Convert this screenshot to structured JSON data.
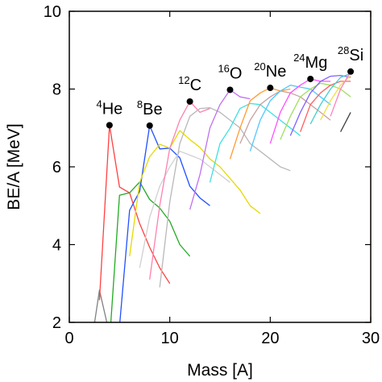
{
  "chart_data": {
    "type": "line",
    "title": "",
    "xlabel": "Mass [A]",
    "ylabel": "BE/A [MeV]",
    "xlim": [
      0,
      30
    ],
    "ylim": [
      2,
      10
    ],
    "xticks": [
      "0",
      "10",
      "20",
      "30"
    ],
    "xtick_values": [
      0,
      10,
      20,
      30
    ],
    "yticks": [
      "2",
      "4",
      "6",
      "8",
      "10"
    ],
    "ytick_values": [
      2,
      4,
      6,
      8,
      10
    ],
    "grid": false,
    "legend": "none",
    "highlighted_points": [
      {
        "mass": "4",
        "symbol": "He",
        "x": 4,
        "y": 7.07
      },
      {
        "mass": "8",
        "symbol": "Be",
        "x": 8,
        "y": 7.06
      },
      {
        "mass": "12",
        "symbol": "C",
        "x": 12,
        "y": 7.68
      },
      {
        "mass": "16",
        "symbol": "O",
        "x": 16,
        "y": 7.98
      },
      {
        "mass": "20",
        "symbol": "Ne",
        "x": 20,
        "y": 8.03
      },
      {
        "mass": "24",
        "symbol": "Mg",
        "x": 24,
        "y": 8.26
      },
      {
        "mass": "28",
        "symbol": "Si",
        "x": 28,
        "y": 8.45
      }
    ],
    "series": [
      {
        "color": "#808080",
        "x": [
          2,
          3,
          4
        ],
        "y": [
          1.1,
          2.83,
          1.7
        ]
      },
      {
        "color": "#ff4040",
        "x": [
          3,
          4,
          5,
          6,
          7,
          8,
          9,
          10
        ],
        "y": [
          2.57,
          7.07,
          5.48,
          5.33,
          4.54,
          3.93,
          3.4,
          3.0
        ]
      },
      {
        "color": "#22aa22",
        "x": [
          4,
          5,
          6,
          7,
          8,
          9,
          10,
          11,
          12
        ],
        "y": [
          1.5,
          5.27,
          5.33,
          5.61,
          5.16,
          4.94,
          4.6,
          4.0,
          3.7
        ]
      },
      {
        "color": "#2050ff",
        "x": [
          5,
          6,
          7,
          8,
          9,
          10,
          11,
          12,
          13,
          14
        ],
        "y": [
          1.9,
          4.88,
          5.37,
          7.06,
          6.46,
          6.48,
          6.23,
          5.5,
          5.2,
          5.0
        ]
      },
      {
        "color": "#e6d800",
        "x": [
          6,
          7,
          8,
          9,
          10,
          11,
          12,
          13,
          14,
          15,
          16,
          17,
          18,
          19
        ],
        "y": [
          3.7,
          5.6,
          6.26,
          6.58,
          6.48,
          6.93,
          6.7,
          6.5,
          6.2,
          6.0,
          5.7,
          5.4,
          5.0,
          4.8
        ]
      },
      {
        "color": "#d0d0d0",
        "x": [
          7,
          8,
          9,
          10,
          11,
          12,
          13,
          14,
          15,
          16
        ],
        "y": [
          3.4,
          4.7,
          5.5,
          6.0,
          6.4,
          6.3,
          6.2,
          6.0,
          5.8,
          5.6
        ]
      },
      {
        "color": "#ff80b0",
        "x": [
          8,
          9,
          10,
          11,
          12,
          13,
          14
        ],
        "y": [
          3.1,
          5.0,
          6.48,
          7.2,
          7.68,
          7.4,
          7.5
        ]
      },
      {
        "color": "#b8b8b8",
        "x": [
          9,
          10,
          11,
          12,
          13,
          14,
          15,
          16,
          17,
          18,
          19,
          20,
          21,
          22
        ],
        "y": [
          2.9,
          5.1,
          6.6,
          7.3,
          7.5,
          7.52,
          7.4,
          7.2,
          7.0,
          6.6,
          6.4,
          6.2,
          6.0,
          5.9
        ]
      },
      {
        "color": "#c070f0",
        "x": [
          12,
          13,
          14,
          15,
          16,
          17,
          18
        ],
        "y": [
          4.9,
          5.8,
          7.0,
          7.6,
          7.98,
          7.8,
          7.75
        ]
      },
      {
        "color": "#40e0e0",
        "x": [
          14,
          15,
          16,
          17,
          18,
          19,
          20,
          21,
          22,
          23
        ],
        "y": [
          5.6,
          6.6,
          7.0,
          7.5,
          7.63,
          7.6,
          7.4,
          7.2,
          7.0,
          6.8
        ]
      },
      {
        "color": "#ff9a30",
        "x": [
          16,
          17,
          18,
          19,
          20,
          21,
          22
        ],
        "y": [
          6.2,
          7.0,
          7.7,
          7.9,
          8.03,
          7.95,
          8.0
        ]
      },
      {
        "color": "#c8a0a0",
        "x": [
          17,
          18,
          19,
          20,
          21,
          22,
          23,
          24,
          25,
          26
        ],
        "y": [
          6.6,
          7.2,
          7.6,
          7.8,
          7.95,
          7.9,
          7.8,
          7.6,
          7.4,
          7.2
        ]
      },
      {
        "color": "#50c8ff",
        "x": [
          18,
          19,
          20,
          21,
          22,
          23,
          24,
          25,
          26
        ],
        "y": [
          6.4,
          7.2,
          7.7,
          7.95,
          8.1,
          8.05,
          8.0,
          7.8,
          7.6
        ]
      },
      {
        "color": "#ff50ff",
        "x": [
          20,
          21,
          22,
          23,
          24,
          25,
          26
        ],
        "y": [
          6.6,
          7.4,
          7.9,
          8.1,
          8.26,
          8.2,
          8.2
        ]
      },
      {
        "color": "#a0e060",
        "x": [
          21,
          22,
          23,
          24,
          25,
          26,
          27,
          28
        ],
        "y": [
          6.7,
          7.3,
          7.8,
          8.0,
          8.15,
          8.1,
          8.0,
          7.8
        ]
      },
      {
        "color": "#8060ff",
        "x": [
          22,
          23,
          24,
          25,
          26,
          27,
          28
        ],
        "y": [
          6.8,
          7.4,
          7.9,
          8.2,
          8.33,
          8.35,
          8.3
        ]
      },
      {
        "color": "#ff6060",
        "x": [
          23,
          24,
          25,
          26,
          27,
          28
        ],
        "y": [
          6.9,
          7.6,
          7.9,
          8.1,
          8.2,
          8.2
        ]
      },
      {
        "color": "#40d0d0",
        "x": [
          24,
          25,
          26,
          27,
          28
        ],
        "y": [
          7.1,
          7.6,
          8.0,
          8.3,
          8.4
        ]
      },
      {
        "color": "#f0e040",
        "x": [
          25,
          26,
          27,
          28
        ],
        "y": [
          7.2,
          7.7,
          8.1,
          8.35
        ]
      },
      {
        "color": "#ff80c0",
        "x": [
          26,
          27,
          28
        ],
        "y": [
          7.3,
          8.0,
          8.45
        ]
      },
      {
        "color": "#404040",
        "x": [
          27,
          28
        ],
        "y": [
          6.9,
          7.4
        ]
      }
    ]
  }
}
